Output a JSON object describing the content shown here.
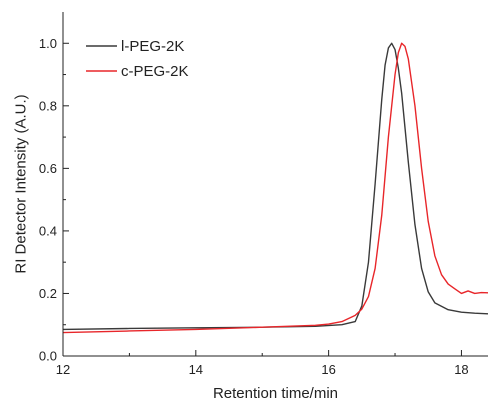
{
  "chart_data": {
    "type": "line",
    "title": "",
    "xlabel": "Retention time/min",
    "ylabel": "RI Detector Intensity (A.U.)",
    "xlim": [
      12,
      18.4
    ],
    "ylim": [
      0,
      1.1
    ],
    "xticks": [
      12,
      14,
      16,
      18
    ],
    "yticks": [
      0.0,
      0.2,
      0.4,
      0.6,
      0.8,
      1.0
    ],
    "xtick_labels": [
      "12",
      "14",
      "16",
      "18"
    ],
    "ytick_labels": [
      "0.0",
      "0.2",
      "0.4",
      "0.6",
      "0.8",
      "1.0"
    ],
    "grid": false,
    "legend_position": "top-left",
    "series": [
      {
        "name": "l-PEG-2K",
        "color": "#3a3a3a",
        "x": [
          12.0,
          13.0,
          14.0,
          15.0,
          15.8,
          16.2,
          16.4,
          16.5,
          16.6,
          16.7,
          16.8,
          16.85,
          16.9,
          16.95,
          17.0,
          17.05,
          17.1,
          17.2,
          17.3,
          17.4,
          17.5,
          17.6,
          17.8,
          18.0,
          18.2,
          18.4
        ],
        "y": [
          0.085,
          0.088,
          0.09,
          0.092,
          0.095,
          0.1,
          0.11,
          0.16,
          0.3,
          0.55,
          0.82,
          0.93,
          0.985,
          1.0,
          0.98,
          0.92,
          0.84,
          0.62,
          0.42,
          0.28,
          0.205,
          0.17,
          0.148,
          0.14,
          0.137,
          0.135
        ]
      },
      {
        "name": "c-PEG-2K",
        "color": "#e8262a",
        "x": [
          12.0,
          13.0,
          14.0,
          15.0,
          15.8,
          16.0,
          16.2,
          16.4,
          16.5,
          16.6,
          16.7,
          16.8,
          16.9,
          17.0,
          17.05,
          17.1,
          17.15,
          17.2,
          17.3,
          17.4,
          17.5,
          17.6,
          17.7,
          17.8,
          17.9,
          18.0,
          18.1,
          18.2,
          18.3,
          18.4
        ],
        "y": [
          0.075,
          0.08,
          0.085,
          0.092,
          0.098,
          0.102,
          0.11,
          0.13,
          0.15,
          0.19,
          0.28,
          0.45,
          0.7,
          0.9,
          0.97,
          1.0,
          0.99,
          0.95,
          0.8,
          0.6,
          0.43,
          0.32,
          0.26,
          0.23,
          0.215,
          0.2,
          0.208,
          0.2,
          0.203,
          0.202
        ]
      }
    ]
  }
}
